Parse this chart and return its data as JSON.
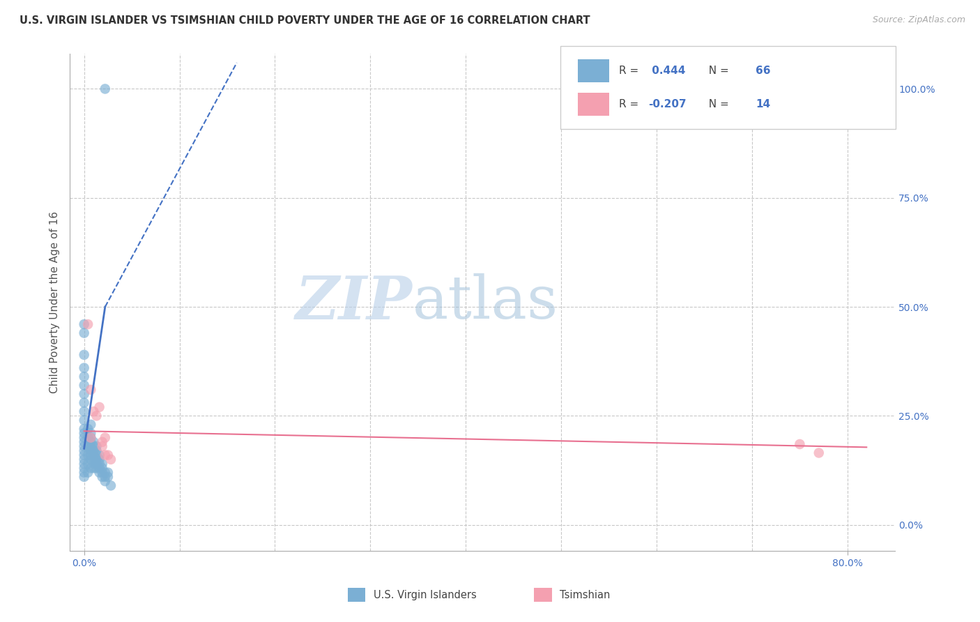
{
  "title": "U.S. VIRGIN ISLANDER VS TSIMSHIAN CHILD POVERTY UNDER THE AGE OF 16 CORRELATION CHART",
  "source": "Source: ZipAtlas.com",
  "ylabel": "Child Poverty Under the Age of 16",
  "y_ticks": [
    0.0,
    0.25,
    0.5,
    0.75,
    1.0
  ],
  "y_tick_labels": [
    "0.0%",
    "25.0%",
    "50.0%",
    "75.0%",
    "100.0%"
  ],
  "x_tick_labels_shown": [
    "0.0%",
    "80.0%"
  ],
  "x_ticks_shown": [
    0.0,
    0.8
  ],
  "xlim": [
    -0.015,
    0.85
  ],
  "ylim": [
    -0.06,
    1.08
  ],
  "blue_color": "#7bafd4",
  "pink_color": "#f4a0b0",
  "blue_line_color": "#4472c4",
  "pink_line_color": "#e87090",
  "R_blue": 0.444,
  "N_blue": 66,
  "R_pink": -0.207,
  "N_pink": 14,
  "watermark_zip": "ZIP",
  "watermark_atlas": "atlas",
  "background_color": "#ffffff",
  "grid_color": "#c8c8c8",
  "blue_scatter_x": [
    0.022,
    0.0,
    0.0,
    0.0,
    0.0,
    0.0,
    0.0,
    0.0,
    0.0,
    0.0,
    0.0,
    0.0,
    0.0,
    0.0,
    0.0,
    0.0,
    0.0,
    0.0,
    0.0,
    0.0,
    0.0,
    0.0,
    0.0,
    0.004,
    0.004,
    0.004,
    0.004,
    0.004,
    0.004,
    0.007,
    0.007,
    0.007,
    0.007,
    0.007,
    0.007,
    0.007,
    0.007,
    0.007,
    0.01,
    0.01,
    0.01,
    0.01,
    0.01,
    0.01,
    0.01,
    0.013,
    0.013,
    0.013,
    0.013,
    0.013,
    0.013,
    0.016,
    0.016,
    0.016,
    0.016,
    0.016,
    0.019,
    0.019,
    0.019,
    0.019,
    0.022,
    0.022,
    0.022,
    0.025,
    0.025,
    0.028
  ],
  "blue_scatter_y": [
    1.0,
    0.46,
    0.44,
    0.39,
    0.36,
    0.34,
    0.32,
    0.3,
    0.28,
    0.26,
    0.24,
    0.22,
    0.21,
    0.2,
    0.19,
    0.18,
    0.17,
    0.16,
    0.15,
    0.14,
    0.13,
    0.12,
    0.11,
    0.22,
    0.2,
    0.18,
    0.16,
    0.14,
    0.12,
    0.23,
    0.21,
    0.2,
    0.19,
    0.18,
    0.17,
    0.16,
    0.15,
    0.13,
    0.19,
    0.18,
    0.17,
    0.16,
    0.15,
    0.14,
    0.13,
    0.18,
    0.17,
    0.16,
    0.15,
    0.14,
    0.13,
    0.16,
    0.15,
    0.14,
    0.13,
    0.12,
    0.14,
    0.13,
    0.12,
    0.11,
    0.12,
    0.11,
    0.1,
    0.12,
    0.11,
    0.09
  ],
  "pink_scatter_x": [
    0.004,
    0.007,
    0.007,
    0.01,
    0.013,
    0.016,
    0.019,
    0.019,
    0.022,
    0.022,
    0.025,
    0.028,
    0.75,
    0.77
  ],
  "pink_scatter_y": [
    0.46,
    0.31,
    0.2,
    0.26,
    0.25,
    0.27,
    0.19,
    0.18,
    0.2,
    0.16,
    0.16,
    0.15,
    0.185,
    0.165
  ],
  "blue_line_x0": 0.0,
  "blue_line_y0": 0.175,
  "blue_line_x1": 0.022,
  "blue_line_y1": 0.5,
  "blue_line_dashed_x1": 0.16,
  "blue_line_dashed_y1": 1.06,
  "pink_line_x0": 0.0,
  "pink_line_y0": 0.215,
  "pink_line_x1": 0.82,
  "pink_line_y1": 0.178
}
